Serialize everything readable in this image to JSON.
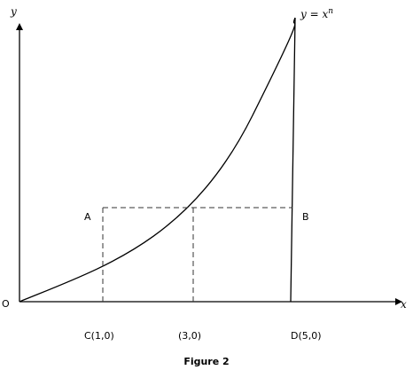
{
  "axes": {
    "y_label": "y",
    "x_label": "x",
    "origin_label": "O"
  },
  "curve": {
    "label_prefix": "y = ",
    "label_base": "x",
    "label_exponent": "n"
  },
  "points": {
    "a": "A",
    "b": "B",
    "c": "C(1,0)",
    "mid": "(3,0)",
    "d": "D(5,0)"
  },
  "caption": "Figure 2",
  "colors": {
    "line": "#000000",
    "dashed": "#333333",
    "background": "#ffffff"
  }
}
